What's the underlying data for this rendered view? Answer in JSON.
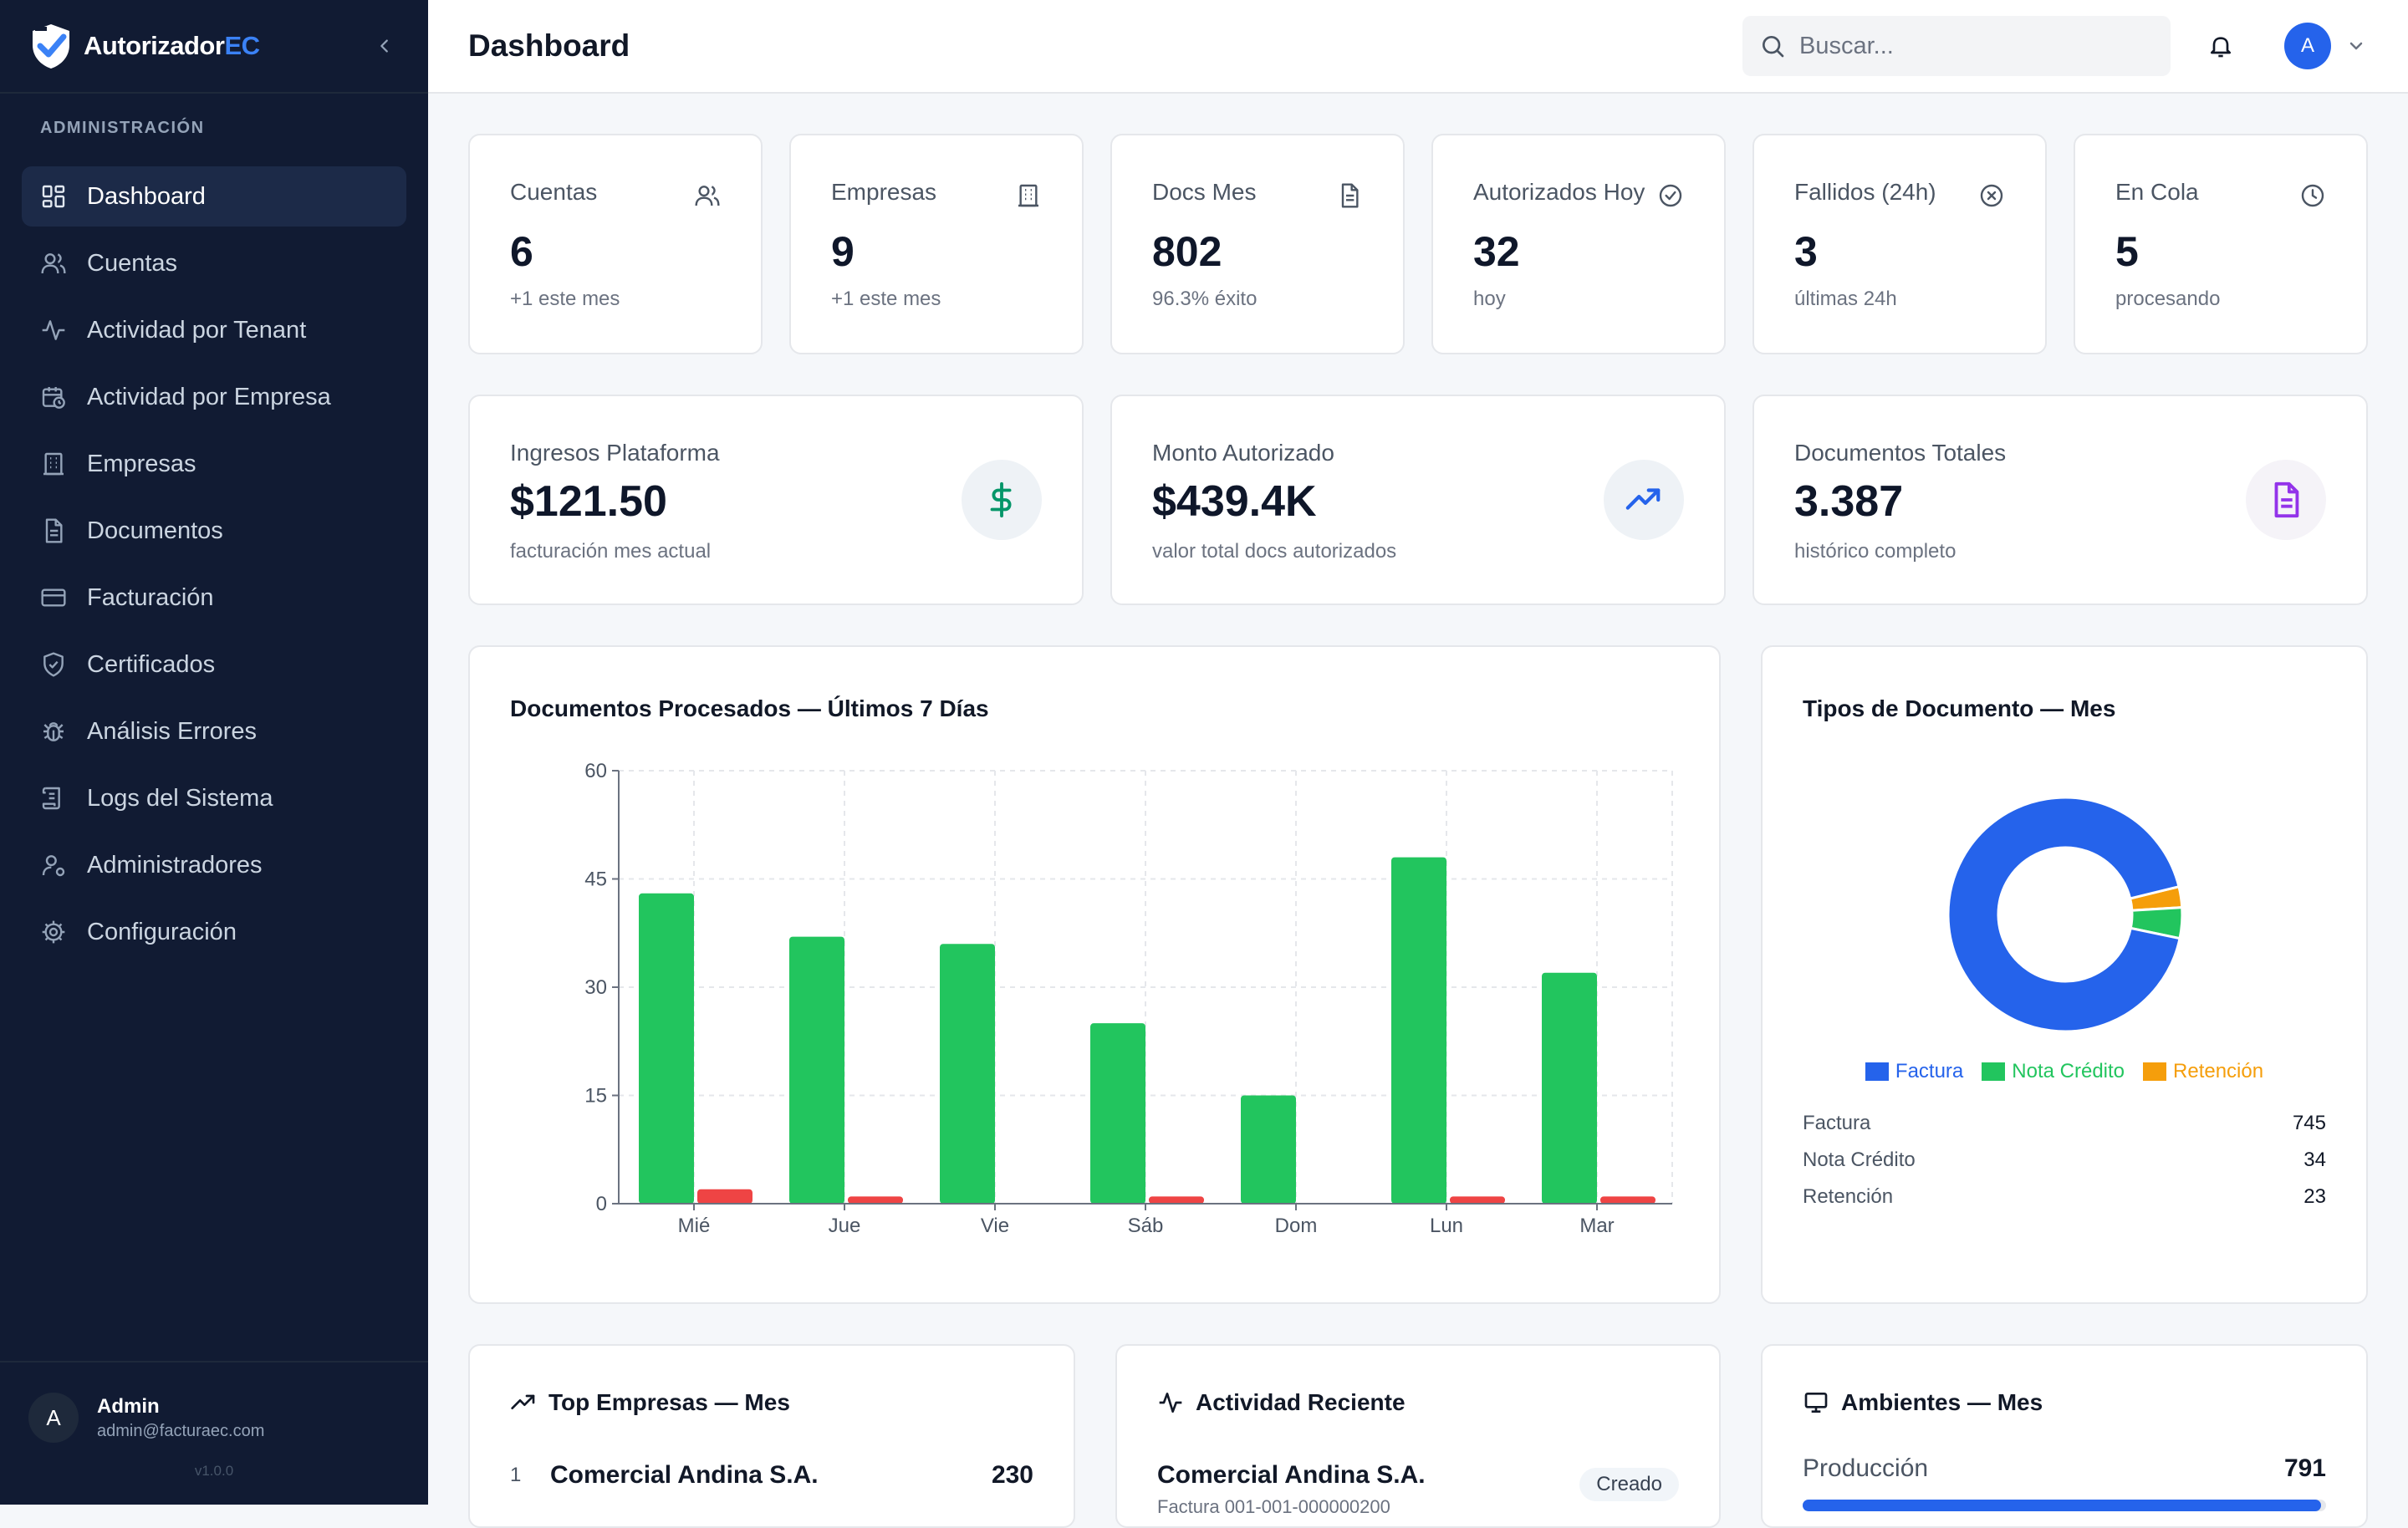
{
  "brand": {
    "name_main": "Autorizador",
    "name_accent": "EC"
  },
  "sidebar": {
    "section_title": "ADMINISTRACIÓN",
    "items": [
      {
        "label": "Dashboard",
        "icon": "dashboard-icon",
        "active": true
      },
      {
        "label": "Cuentas",
        "icon": "users-icon"
      },
      {
        "label": "Actividad por Tenant",
        "icon": "activity-icon"
      },
      {
        "label": "Actividad por Empresa",
        "icon": "calendar-clock-icon"
      },
      {
        "label": "Empresas",
        "icon": "building-icon"
      },
      {
        "label": "Documentos",
        "icon": "document-icon"
      },
      {
        "label": "Facturación",
        "icon": "credit-card-icon"
      },
      {
        "label": "Certificados",
        "icon": "shield-check-icon"
      },
      {
        "label": "Análisis Errores",
        "icon": "bug-icon"
      },
      {
        "label": "Logs del Sistema",
        "icon": "scroll-icon"
      },
      {
        "label": "Administradores",
        "icon": "user-cog-icon"
      },
      {
        "label": "Configuración",
        "icon": "gear-icon"
      }
    ],
    "user": {
      "initial": "A",
      "name": "Admin",
      "email": "admin@facturaec.com"
    },
    "version": "v1.0.0"
  },
  "header": {
    "title": "Dashboard",
    "search_placeholder": "Buscar...",
    "avatar_initial": "A"
  },
  "stats": [
    {
      "label": "Cuentas",
      "value": "6",
      "sub": "+1 este mes",
      "icon": "users-icon"
    },
    {
      "label": "Empresas",
      "value": "9",
      "sub": "+1 este mes",
      "icon": "building-icon"
    },
    {
      "label": "Docs Mes",
      "value": "802",
      "sub": "96.3% éxito",
      "icon": "document-icon"
    },
    {
      "label": "Autorizados Hoy",
      "value": "32",
      "sub": "hoy",
      "icon": "check-circle-icon"
    },
    {
      "label": "Fallidos (24h)",
      "value": "3",
      "sub": "últimas 24h",
      "icon": "x-circle-icon"
    },
    {
      "label": "En Cola",
      "value": "5",
      "sub": "procesando",
      "icon": "clock-icon"
    }
  ],
  "wide_stats": [
    {
      "label": "Ingresos Plataforma",
      "value": "$121.50",
      "sub": "facturación mes actual",
      "icon": "dollar-icon",
      "color": "#059669"
    },
    {
      "label": "Monto Autorizado",
      "value": "$439.4K",
      "sub": "valor total docs autorizados",
      "icon": "trending-up-icon",
      "color": "#2563eb"
    },
    {
      "label": "Documentos Totales",
      "value": "3.387",
      "sub": "histórico completo",
      "icon": "file-text-icon",
      "color": "#9333ea"
    }
  ],
  "chart_data": [
    {
      "type": "bar",
      "title": "Documentos Procesados — Últimos 7 Días",
      "categories": [
        "Mié",
        "Jue",
        "Vie",
        "Sáb",
        "Dom",
        "Lun",
        "Mar"
      ],
      "series": [
        {
          "values": [
            43,
            37,
            36,
            25,
            15,
            48,
            32
          ],
          "color": "#22c55e"
        },
        {
          "values": [
            2,
            1,
            0,
            1,
            0,
            1,
            1
          ],
          "color": "#ef4444"
        }
      ],
      "yticks": [
        "0",
        "15",
        "30",
        "45",
        "60"
      ],
      "ylim": [
        0,
        60
      ],
      "grid": true
    },
    {
      "type": "pie",
      "title": "Tipos de Documento — Mes",
      "donut": true,
      "categories": [
        "Factura",
        "Nota Crédito",
        "Retención"
      ],
      "values": [
        745,
        34,
        23
      ],
      "colors": [
        "#2563eb",
        "#22c55e",
        "#f59e0b"
      ],
      "legend": "bottom"
    }
  ],
  "bar_chart": {
    "title": "Documentos Procesados — Últimos 7 Días"
  },
  "pie_chart": {
    "title": "Tipos de Documento — Mes",
    "legend": [
      {
        "label": "Factura",
        "color": "#2563eb"
      },
      {
        "label": "Nota Crédito",
        "color": "#22c55e"
      },
      {
        "label": "Retención",
        "color": "#f59e0b"
      }
    ],
    "rows": [
      {
        "name": "Factura",
        "value": "745"
      },
      {
        "name": "Nota Crédito",
        "value": "34"
      },
      {
        "name": "Retención",
        "value": "23"
      }
    ]
  },
  "top_empresas": {
    "title": "Top Empresas — Mes",
    "rows": [
      {
        "rank": "1",
        "name": "Comercial Andina S.A.",
        "value": "230"
      }
    ]
  },
  "actividad": {
    "title": "Actividad Reciente",
    "items": [
      {
        "name": "Comercial Andina S.A.",
        "doc": "Factura 001-001-000000200",
        "badge": "Creado"
      }
    ]
  },
  "ambientes": {
    "title": "Ambientes — Mes",
    "rows": [
      {
        "name": "Producción",
        "value": "791",
        "fraction": 0.99
      }
    ]
  }
}
